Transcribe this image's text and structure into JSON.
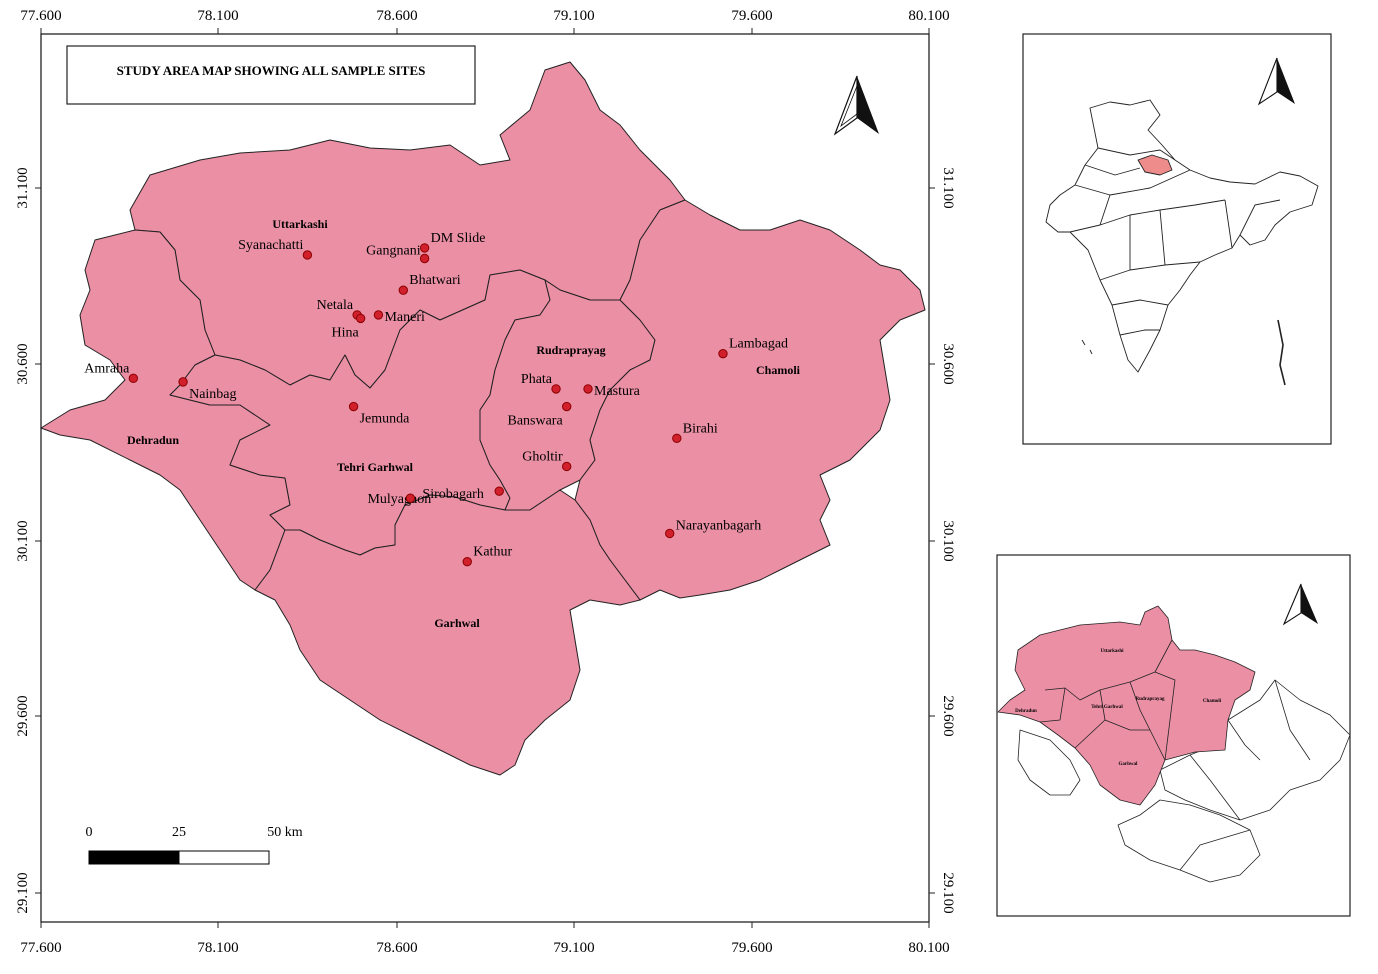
{
  "title": "STUDY AREA MAP SHOWING ALL SAMPLE SITES",
  "colors": {
    "district_fill": "#EB8FA5",
    "district_stroke": "#222222",
    "site_fill": "#D11F2C",
    "site_stroke": "#8B0000",
    "highlight_fill": "#EE8C8C"
  },
  "axes": {
    "x_ticks": [
      "77.600",
      "78.100",
      "78.600",
      "79.100",
      "79.600",
      "80.100"
    ],
    "y_ticks": [
      "31.100",
      "30.600",
      "30.100",
      "29.600",
      "29.100"
    ]
  },
  "districts": [
    "Uttarkashi",
    "Rudraprayag",
    "Chamoli",
    "Dehradun",
    "Tehri Garhwal",
    "Garhwal"
  ],
  "sites": [
    {
      "name": "Syanachatti",
      "lon": 78.35,
      "lat": 30.91
    },
    {
      "name": "Gangnani",
      "lon": 78.68,
      "lat": 30.9
    },
    {
      "name": "DM Slide",
      "lon": 78.68,
      "lat": 30.93
    },
    {
      "name": "Bhatwari",
      "lon": 78.62,
      "lat": 30.81
    },
    {
      "name": "Netala",
      "lon": 78.49,
      "lat": 30.74
    },
    {
      "name": "Hina",
      "lon": 78.5,
      "lat": 30.73
    },
    {
      "name": "Maneri",
      "lon": 78.55,
      "lat": 30.74
    },
    {
      "name": "Amraha",
      "lon": 77.86,
      "lat": 30.56
    },
    {
      "name": "Nainbag",
      "lon": 78.0,
      "lat": 30.55
    },
    {
      "name": "Jemunda",
      "lon": 78.48,
      "lat": 30.48
    },
    {
      "name": "Lambagad",
      "lon": 79.52,
      "lat": 30.63
    },
    {
      "name": "Phata",
      "lon": 79.05,
      "lat": 30.53
    },
    {
      "name": "Mastura",
      "lon": 79.14,
      "lat": 30.53
    },
    {
      "name": "Banswara",
      "lon": 79.08,
      "lat": 30.48
    },
    {
      "name": "Birahi",
      "lon": 79.39,
      "lat": 30.39
    },
    {
      "name": "Gholtir",
      "lon": 79.08,
      "lat": 30.31
    },
    {
      "name": "Mulyagaon",
      "lon": 78.89,
      "lat": 30.24
    },
    {
      "name": "Sirobagarh",
      "lon": 78.64,
      "lat": 30.22
    },
    {
      "name": "Narayanbagarh",
      "lon": 79.37,
      "lat": 30.12
    },
    {
      "name": "Kathur",
      "lon": 78.8,
      "lat": 30.04
    }
  ],
  "scale_bar": {
    "labels": [
      "0",
      "25",
      "50 km"
    ]
  },
  "inset_state_labels": [
    "Uttarkashi",
    "Rudraprayag",
    "Dehradun",
    "Tehri Garhwal",
    "Chamoli",
    "Garhwal"
  ]
}
